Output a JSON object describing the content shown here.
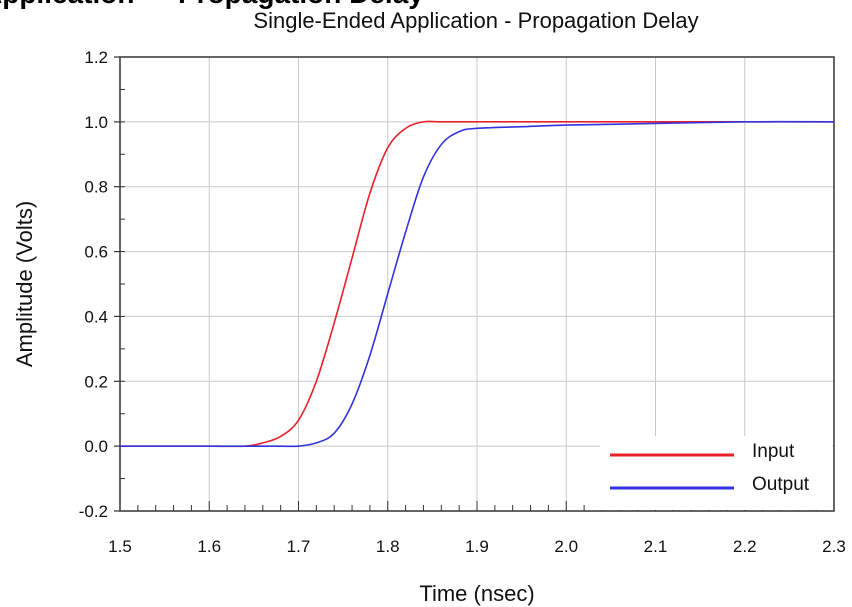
{
  "page_heading": "Application — Propagation Delay",
  "chart_data": {
    "type": "line",
    "title": "Single-Ended Application - Propagation Delay",
    "xlabel": "Time (nsec)",
    "ylabel": "Amplitude (Volts)",
    "xlim": [
      1.5,
      2.3
    ],
    "ylim": [
      -0.2,
      1.2
    ],
    "xticks": [
      "1.5",
      "1.6",
      "1.7",
      "1.8",
      "1.9",
      "2.0",
      "2.1",
      "2.2",
      "2.3"
    ],
    "yticks": [
      "-0.2",
      "0.0",
      "0.2",
      "0.4",
      "0.6",
      "0.8",
      "1.0",
      "1.2"
    ],
    "grid": true,
    "legend_position": "bottom-right",
    "series": [
      {
        "name": "Input",
        "color": "#e8202a",
        "x": [
          1.5,
          1.6,
          1.64,
          1.66,
          1.68,
          1.7,
          1.72,
          1.74,
          1.76,
          1.78,
          1.8,
          1.82,
          1.84,
          1.86,
          1.9,
          2.0,
          2.1,
          2.2,
          2.3
        ],
        "y": [
          0.0,
          0.0,
          0.0,
          0.01,
          0.03,
          0.08,
          0.2,
          0.38,
          0.58,
          0.78,
          0.92,
          0.98,
          1.0,
          1.0,
          1.0,
          1.0,
          1.0,
          1.0,
          1.0
        ]
      },
      {
        "name": "Output",
        "color": "#3333dd",
        "x": [
          1.5,
          1.6,
          1.65,
          1.68,
          1.7,
          1.72,
          1.74,
          1.76,
          1.78,
          1.8,
          1.82,
          1.84,
          1.86,
          1.88,
          1.9,
          1.95,
          2.0,
          2.1,
          2.2,
          2.3
        ],
        "y": [
          0.0,
          0.0,
          0.0,
          0.0,
          0.0,
          0.01,
          0.04,
          0.13,
          0.28,
          0.47,
          0.66,
          0.83,
          0.93,
          0.97,
          0.98,
          0.985,
          0.99,
          0.995,
          1.0,
          1.0
        ]
      }
    ]
  }
}
